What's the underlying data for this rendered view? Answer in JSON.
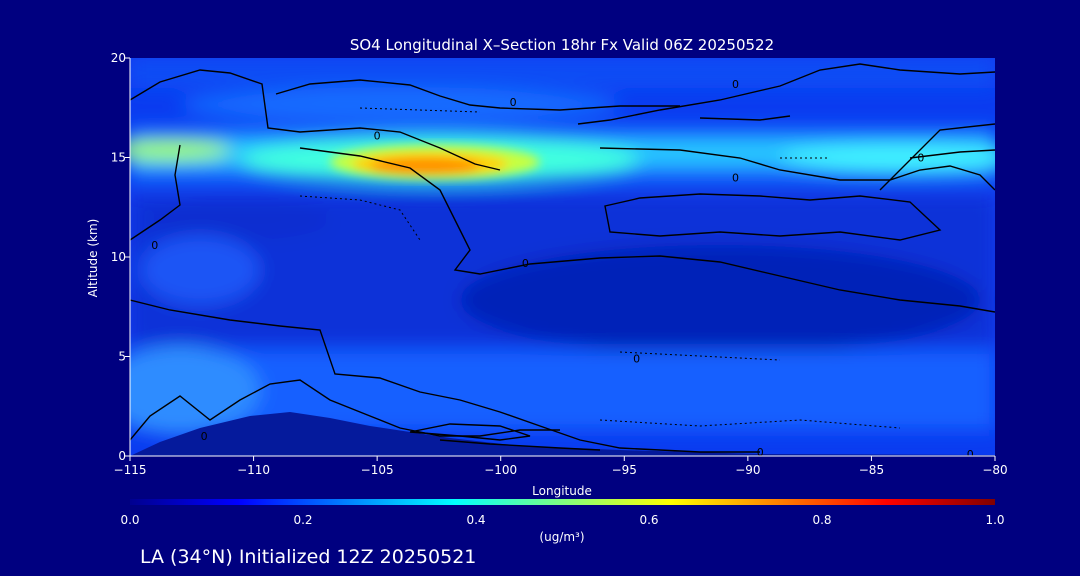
{
  "chart_data": {
    "type": "heatmap",
    "title": "SO4 Longitudinal X–Section 18hr  Fx Valid 06Z 20250522",
    "xlabel": "Longitude",
    "ylabel": "Altitude (km)",
    "xlim": [
      -115,
      -80
    ],
    "ylim": [
      0,
      20
    ],
    "x_ticks": [
      -115,
      -110,
      -105,
      -100,
      -95,
      -90,
      -85,
      -80
    ],
    "x_tick_labels": [
      "−115",
      "−110",
      "−105",
      "−100",
      "−95",
      "−90",
      "−85",
      "−80"
    ],
    "y_ticks": [
      0,
      5,
      10,
      15,
      20
    ],
    "y_tick_labels": [
      "0",
      "5",
      "10",
      "15",
      "20"
    ],
    "colorbar": {
      "label": "(ug/m³)",
      "range": [
        0.0,
        1.0
      ],
      "ticks": [
        0.0,
        0.2,
        0.4,
        0.6,
        0.8,
        1.0
      ],
      "tick_labels": [
        "0.0",
        "0.2",
        "0.4",
        "0.6",
        "0.8",
        "1.0"
      ],
      "colormap": [
        "#00008f",
        "#0000ff",
        "#0080ff",
        "#00ffff",
        "#80ff80",
        "#ffff00",
        "#ff8000",
        "#ff0000",
        "#800000"
      ]
    },
    "features": [
      {
        "name": "layer near 15 km",
        "lon_range": [
          -115,
          -80
        ],
        "alt": 15,
        "value": 0.4
      },
      {
        "name": "maximum",
        "lon_range": [
          -106,
          -101
        ],
        "alt": 14.5,
        "value": 0.65
      },
      {
        "name": "surface layer",
        "lon_range": [
          -115,
          -80
        ],
        "alt": 1,
        "value": 0.3
      }
    ],
    "contour_labels": [
      {
        "text": "0",
        "lon": -99.5,
        "alt": 17.8
      },
      {
        "text": "0",
        "lon": -90.5,
        "alt": 18.7
      },
      {
        "text": "0",
        "lon": -105,
        "alt": 16.1
      },
      {
        "text": "0",
        "lon": -90.5,
        "alt": 14.0
      },
      {
        "text": "0",
        "lon": -83,
        "alt": 15.0
      },
      {
        "text": "0",
        "lon": -114,
        "alt": 10.6
      },
      {
        "text": "0",
        "lon": -99,
        "alt": 9.7
      },
      {
        "text": "0",
        "lon": -94.5,
        "alt": 4.9
      },
      {
        "text": "0",
        "lon": -112,
        "alt": 1.0
      },
      {
        "text": "0",
        "lon": -89.5,
        "alt": 0.2
      },
      {
        "text": "0",
        "lon": -81,
        "alt": 0.1
      }
    ]
  },
  "footer": {
    "caption": "LA (34°N) Initialized 12Z 20250521"
  }
}
